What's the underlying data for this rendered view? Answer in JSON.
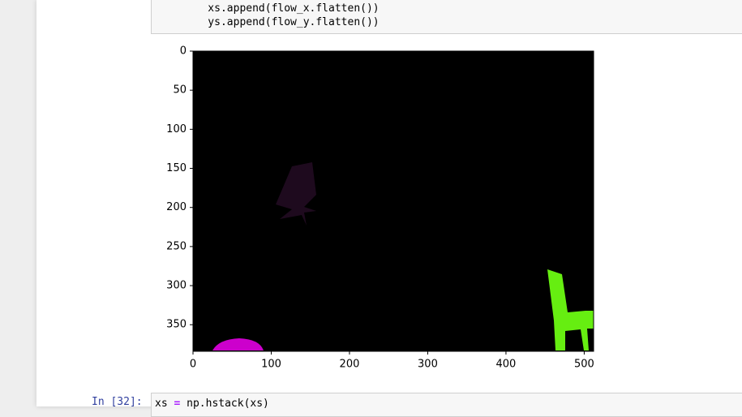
{
  "cells": [
    {
      "code": [
        "    xs.append(flow_x.flatten())",
        "    ys.append(flow_y.flatten())"
      ]
    },
    {
      "prompt": "In [32]:",
      "tokens": [
        "xs ",
        "=",
        " np.hstack(xs)"
      ]
    }
  ],
  "chart_data": {
    "type": "image",
    "xlim": [
      0,
      512
    ],
    "ylim": [
      384,
      0
    ],
    "xticks": [
      0,
      100,
      200,
      300,
      400,
      500
    ],
    "yticks": [
      0,
      50,
      100,
      150,
      200,
      250,
      300,
      350
    ]
  }
}
